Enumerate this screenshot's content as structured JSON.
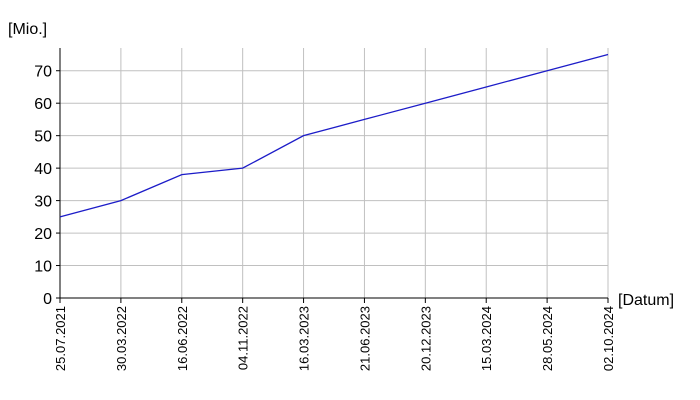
{
  "chart_data": {
    "type": "line",
    "y_label": "[Mio.]",
    "x_label": "[Datum]",
    "categories": [
      "25.07.2021",
      "30.03.2022",
      "16.06.2022",
      "04.11.2022",
      "16.03.2023",
      "21.06.2023",
      "20.12.2023",
      "15.03.2024",
      "28.05.2024",
      "02.10.2024"
    ],
    "values": [
      25,
      30,
      38,
      40,
      50,
      55,
      60,
      65,
      70,
      75
    ],
    "color": "#1c1cc8",
    "ylim": [
      0,
      77
    ],
    "yticks": [
      0,
      10,
      20,
      30,
      40,
      50,
      60,
      70
    ],
    "grid": true
  }
}
